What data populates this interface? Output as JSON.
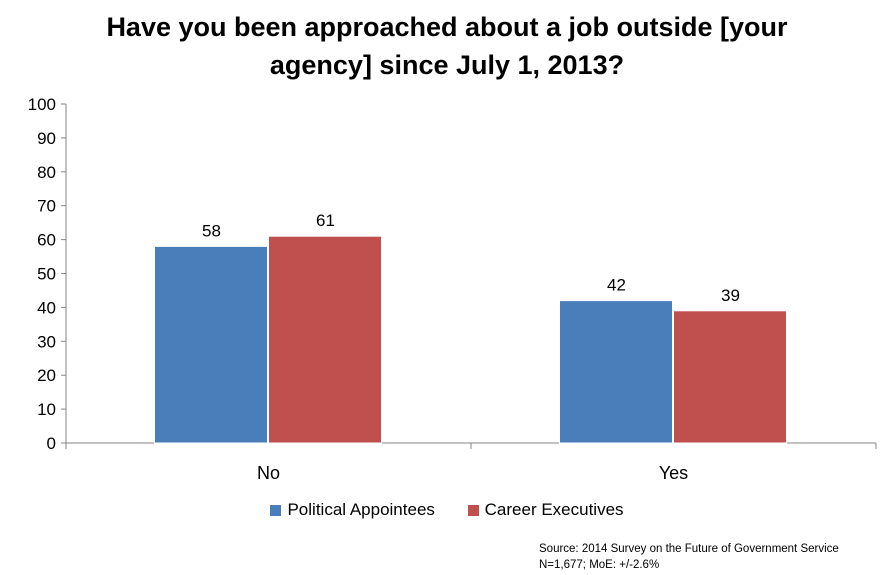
{
  "title_line1": "Have you been approached about a job outside [your",
  "title_line2": "agency] since July 1, 2013?",
  "source_line1": "Source: 2014 Survey on the Future of Government Service",
  "source_line2": "N=1,677; MoE: +/-2.6%",
  "chart_data": {
    "type": "bar",
    "title": "Have you been approached about a job outside [your agency] since July 1, 2013?",
    "categories": [
      "No",
      "Yes"
    ],
    "series": [
      {
        "name": "Political Appointees",
        "values": [
          58,
          42
        ],
        "color": "#4a7ebb"
      },
      {
        "name": "Career Executives",
        "values": [
          61,
          39
        ],
        "color": "#c0504d"
      }
    ],
    "ylim": [
      0,
      100
    ],
    "yticks": [
      0,
      10,
      20,
      30,
      40,
      50,
      60,
      70,
      80,
      90,
      100
    ],
    "grid": false,
    "legend": "bottom",
    "xlabel": "",
    "ylabel": ""
  }
}
